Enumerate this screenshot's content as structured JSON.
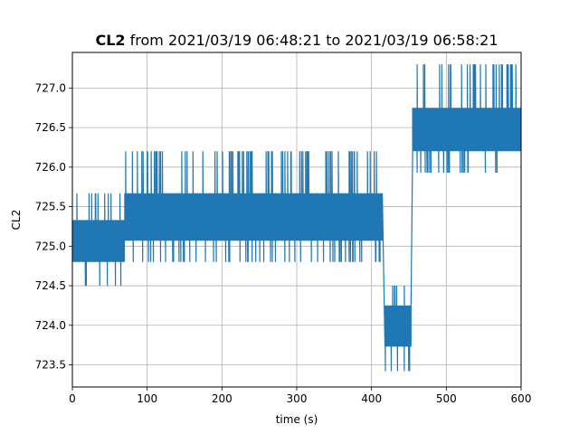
{
  "chart_data": {
    "type": "line",
    "title_bold": "CL2",
    "title_rest": " from 2021/03/19 06:48:21 to 2021/03/19 06:58:21",
    "xlabel": "time (s)",
    "ylabel": "CL2",
    "xlim": [
      0,
      600
    ],
    "ylim": [
      723.22,
      727.45
    ],
    "grid": true,
    "line_color": "#1f77b4",
    "x_ticks": [
      0,
      100,
      200,
      300,
      400,
      500,
      600
    ],
    "x_tick_labels": [
      "0",
      "100",
      "200",
      "300",
      "400",
      "500",
      "600"
    ],
    "y_ticks": [
      723.5,
      724.0,
      724.5,
      725.0,
      725.5,
      726.0,
      726.5,
      727.0
    ],
    "y_tick_labels": [
      "723.5",
      "724.0",
      "724.5",
      "725.0",
      "725.5",
      "726.0",
      "726.5",
      "727.0"
    ],
    "segments": [
      {
        "x_start": 0,
        "x_end": 70,
        "band_low": 724.8,
        "band_high": 725.33,
        "spike_low": 724.5,
        "spike_high": 725.67
      },
      {
        "x_start": 70,
        "x_end": 415,
        "band_low": 725.07,
        "band_high": 725.67,
        "spike_low": 724.8,
        "spike_high": 726.2
      },
      {
        "x_start": 418,
        "x_end": 453,
        "band_low": 723.73,
        "band_high": 724.25,
        "spike_low": 723.42,
        "spike_high": 724.5
      },
      {
        "x_start": 455,
        "x_end": 600,
        "band_low": 726.2,
        "band_high": 726.75,
        "spike_low": 725.93,
        "spike_high": 727.3
      }
    ]
  }
}
